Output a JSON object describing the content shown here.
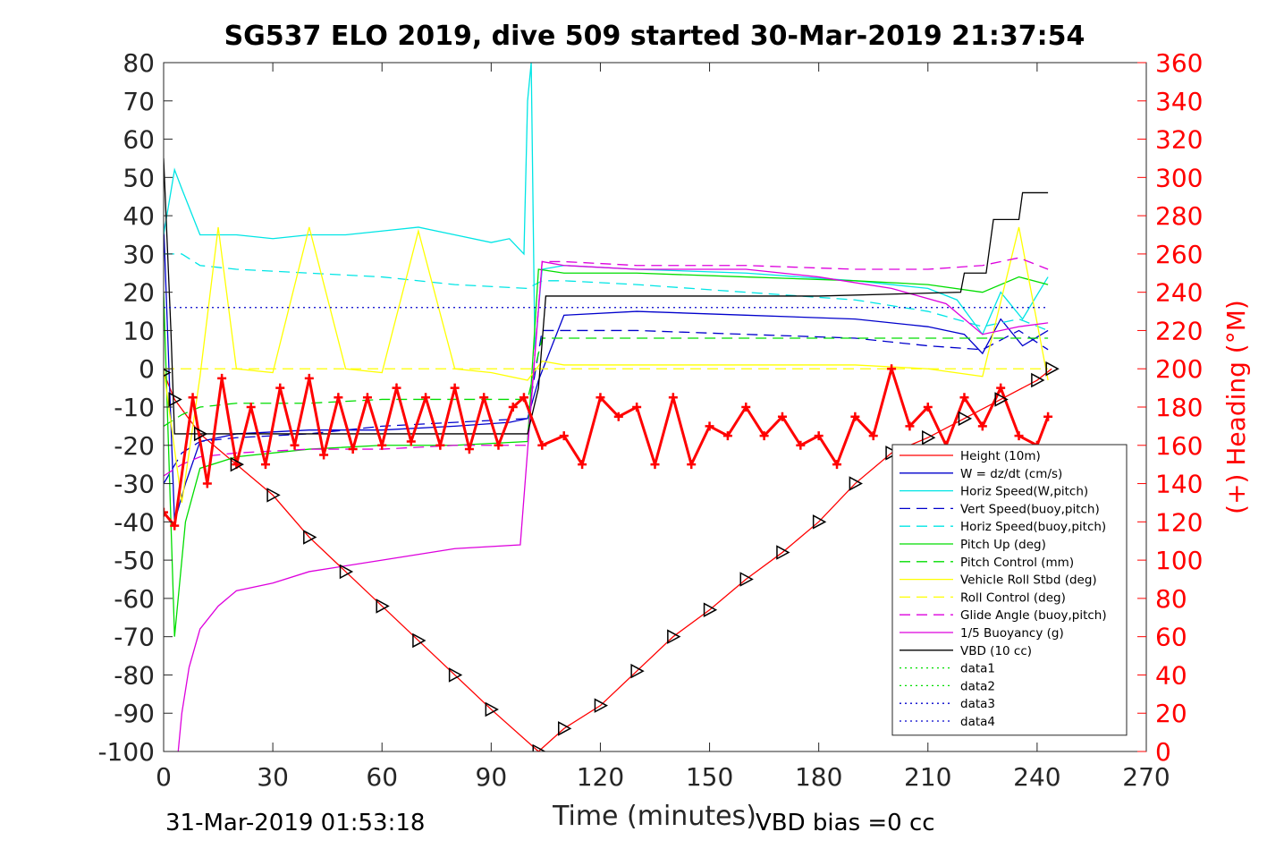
{
  "chart_data": {
    "type": "line",
    "title": "SG537 ELO 2019, dive 509 started 30-Mar-2019 21:37:54",
    "xlabel": "Time (minutes)",
    "ylabel": "",
    "ylabel_right": "(+) Heading (°M)",
    "xlim": [
      0,
      270
    ],
    "ylim": [
      -100,
      80
    ],
    "ylim_right": [
      0,
      360
    ],
    "x_ticks": [
      "0",
      "30",
      "60",
      "90",
      "120",
      "150",
      "180",
      "210",
      "240",
      "270"
    ],
    "y_ticks": [
      "80",
      "70",
      "60",
      "50",
      "40",
      "30",
      "20",
      "10",
      "0",
      "-10",
      "-20",
      "-30",
      "-40",
      "-50",
      "-60",
      "-70",
      "-80",
      "-90",
      "-100"
    ],
    "y_ticks_right": [
      "360",
      "340",
      "320",
      "300",
      "280",
      "260",
      "240",
      "220",
      "200",
      "180",
      "160",
      "140",
      "120",
      "100",
      "80",
      "60",
      "40",
      "20",
      "0"
    ],
    "grid": false,
    "legend_position": "bottom-right",
    "footer_left": "31-Mar-2019 01:53:18",
    "footer_right": "VBD bias =0 cc",
    "colors": {
      "heading": "#ff0000",
      "right_axis": "#ff0000"
    },
    "series": [
      {
        "name": "Height (10m)",
        "color": "#ff0000",
        "style": "solid",
        "x": [
          0,
          3,
          10,
          20,
          30,
          40,
          50,
          60,
          70,
          80,
          90,
          103,
          110,
          120,
          130,
          140,
          150,
          160,
          170,
          180,
          190,
          200,
          210,
          220,
          230,
          240,
          244
        ],
        "y": [
          -1,
          -8,
          -17,
          -25,
          -33,
          -44,
          -53,
          -62,
          -71,
          -80,
          -89,
          -100,
          -94,
          -88,
          -79,
          -70,
          -63,
          -55,
          -48,
          -40,
          -30,
          -22,
          -18,
          -13,
          -8,
          -3,
          0
        ]
      },
      {
        "name": "W = dz/dt (cm/s)",
        "color": "#0000cc",
        "style": "solid",
        "x": [
          0,
          3,
          6,
          10,
          20,
          40,
          60,
          80,
          95,
          100,
          103,
          110,
          130,
          160,
          190,
          210,
          220,
          225,
          230,
          236,
          243
        ],
        "y": [
          38,
          -40,
          -30,
          -19,
          -17,
          -16,
          -16,
          -15,
          -14,
          -13,
          -3,
          14,
          15,
          14,
          13,
          11,
          9,
          4,
          13,
          6,
          10
        ]
      },
      {
        "name": "Horiz Speed(W,pitch)",
        "color": "#00e5e5",
        "style": "solid",
        "x": [
          0,
          3,
          5,
          10,
          15,
          20,
          30,
          40,
          50,
          60,
          70,
          80,
          90,
          95,
          99,
          100,
          101,
          102,
          104,
          110,
          130,
          160,
          190,
          210,
          218,
          225,
          230,
          236,
          243
        ],
        "y": [
          35,
          52,
          47,
          35,
          35,
          35,
          34,
          35,
          35,
          36,
          37,
          35,
          33,
          34,
          30,
          70,
          80,
          5,
          26,
          27,
          26,
          25,
          23,
          21,
          18,
          9,
          20,
          13,
          24
        ]
      },
      {
        "name": "Vert Speed(buoy,pitch)",
        "color": "#0000cc",
        "style": "dashed",
        "x": [
          0,
          5,
          10,
          20,
          40,
          60,
          80,
          100,
          104,
          110,
          130,
          160,
          190,
          210,
          225,
          235,
          243
        ],
        "y": [
          -30,
          -22,
          -19,
          -18,
          -17,
          -15,
          -14,
          -13,
          10,
          10,
          10,
          9,
          8,
          6,
          5,
          10,
          5
        ]
      },
      {
        "name": "Horiz Speed(buoy,pitch)",
        "color": "#00e5e5",
        "style": "dashed",
        "x": [
          0,
          5,
          10,
          20,
          40,
          60,
          80,
          100,
          104,
          110,
          130,
          160,
          190,
          210,
          225,
          235,
          243
        ],
        "y": [
          30,
          30,
          27,
          26,
          25,
          24,
          22,
          21,
          23,
          23,
          22,
          20,
          18,
          15,
          11,
          13,
          10
        ]
      },
      {
        "name": "Pitch Up (deg)",
        "color": "#00dd00",
        "style": "solid",
        "x": [
          0,
          3,
          6,
          10,
          20,
          40,
          60,
          80,
          100,
          103,
          110,
          130,
          160,
          190,
          210,
          225,
          235,
          243
        ],
        "y": [
          20,
          -70,
          -40,
          -26,
          -23,
          -21,
          -20,
          -20,
          -19,
          26,
          25,
          25,
          24,
          23,
          22,
          20,
          24,
          22
        ]
      },
      {
        "name": "Pitch Control (mm)",
        "color": "#00dd00",
        "style": "dashed",
        "x": [
          0,
          5,
          10,
          20,
          40,
          60,
          80,
          100,
          104,
          110,
          130,
          160,
          190,
          210,
          225,
          235,
          243
        ],
        "y": [
          -15,
          -12,
          -10,
          -9,
          -9,
          -8,
          -8,
          -8,
          8,
          8,
          8,
          8,
          8,
          8,
          8,
          8,
          8
        ]
      },
      {
        "name": "Vehicle Roll Stbd (deg)",
        "color": "#ffff00",
        "style": "solid",
        "x": [
          0,
          5,
          10,
          15,
          20,
          30,
          40,
          50,
          60,
          70,
          80,
          90,
          100,
          104,
          110,
          130,
          160,
          190,
          210,
          225,
          235,
          243
        ],
        "y": [
          0,
          -35,
          -2,
          37,
          0,
          -1,
          37,
          0,
          -1,
          36,
          0,
          -1,
          -3,
          2,
          1,
          1,
          1,
          1,
          0,
          -2,
          37,
          -3
        ]
      },
      {
        "name": "Roll Control (deg)",
        "color": "#ffff00",
        "style": "dashed",
        "x": [
          0,
          10,
          30,
          60,
          90,
          104,
          120,
          150,
          180,
          210,
          243
        ],
        "y": [
          0,
          0,
          0,
          0,
          0,
          0,
          0,
          0,
          0,
          0,
          0
        ]
      },
      {
        "name": "Glide Angle (buoy,pitch)",
        "color": "#dd00dd",
        "style": "dashed",
        "x": [
          0,
          5,
          10,
          20,
          40,
          60,
          80,
          100,
          104,
          110,
          130,
          160,
          190,
          210,
          225,
          235,
          243
        ],
        "y": [
          -28,
          -25,
          -23,
          -22,
          -21,
          -21,
          -20,
          -20,
          28,
          28,
          27,
          27,
          26,
          26,
          27,
          29,
          26
        ]
      },
      {
        "name": "1/5 Buoyancy (g)",
        "color": "#dd00dd",
        "style": "solid",
        "x": [
          4,
          5,
          7,
          10,
          15,
          20,
          30,
          40,
          60,
          80,
          98,
          104,
          110,
          130,
          160,
          180,
          200,
          215,
          225,
          235,
          243
        ],
        "y": [
          -100,
          -90,
          -78,
          -68,
          -62,
          -58,
          -56,
          -53,
          -50,
          -47,
          -46,
          28,
          27,
          26,
          26,
          24,
          21,
          17,
          9,
          11,
          12
        ]
      },
      {
        "name": "VBD (10 cc)",
        "color": "#000000",
        "style": "solid",
        "x": [
          0,
          2,
          3,
          10,
          50,
          100,
          103,
          105,
          120,
          180,
          219,
          220,
          225,
          226,
          228,
          235,
          236,
          243
        ],
        "y": [
          55,
          10,
          -17,
          -17,
          -17,
          -17,
          -5,
          19,
          19,
          19,
          20,
          25,
          25,
          25,
          39,
          39,
          46,
          46
        ]
      },
      {
        "name": "data1",
        "color": "#00dd00",
        "style": "dotted",
        "x": [],
        "y": []
      },
      {
        "name": "data2",
        "color": "#00dd00",
        "style": "dotted",
        "x": [],
        "y": []
      },
      {
        "name": "data3",
        "color": "#0000cc",
        "style": "dotted",
        "x": [],
        "y": []
      },
      {
        "name": "data4",
        "color": "#0000cc",
        "style": "dotted",
        "x": [
          0,
          243
        ],
        "y": [
          16,
          16
        ]
      }
    ],
    "heading": {
      "axis": "right",
      "color": "#ff0000",
      "x": [
        0,
        3,
        8,
        12,
        16,
        20,
        24,
        28,
        32,
        36,
        40,
        44,
        48,
        52,
        56,
        60,
        64,
        68,
        72,
        76,
        80,
        84,
        88,
        92,
        96,
        99,
        104,
        110,
        115,
        120,
        125,
        130,
        135,
        140,
        145,
        150,
        155,
        160,
        165,
        170,
        175,
        180,
        185,
        190,
        195,
        200,
        205,
        210,
        215,
        220,
        225,
        230,
        235,
        240,
        243
      ],
      "y": [
        125,
        118,
        185,
        140,
        195,
        150,
        180,
        150,
        190,
        160,
        195,
        155,
        185,
        158,
        185,
        160,
        190,
        162,
        185,
        160,
        190,
        158,
        185,
        160,
        180,
        185,
        160,
        165,
        150,
        185,
        175,
        180,
        150,
        185,
        150,
        170,
        165,
        180,
        165,
        175,
        160,
        165,
        150,
        175,
        165,
        200,
        170,
        180,
        160,
        185,
        170,
        190,
        165,
        160,
        175
      ]
    }
  }
}
